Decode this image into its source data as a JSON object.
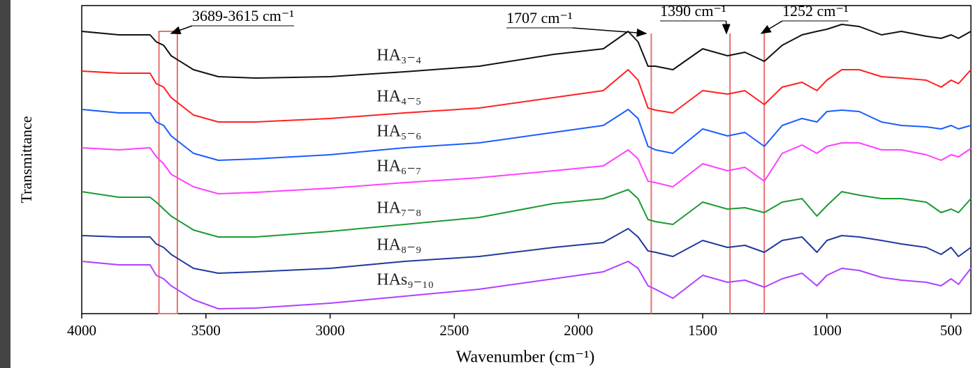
{
  "chart_data": {
    "type": "line",
    "x_label": "Wavenumber (cm⁻¹)",
    "y_label": "Transmittance",
    "xlim": [
      4000,
      420
    ],
    "ylim": [
      0,
      440
    ],
    "xticks": [
      4000,
      3500,
      3000,
      2500,
      2000,
      1500,
      1000,
      500
    ],
    "x": [
      4000,
      3850,
      3725,
      3700,
      3670,
      3640,
      3550,
      3450,
      3300,
      3000,
      2700,
      2400,
      2100,
      1900,
      1800,
      1760,
      1720,
      1690,
      1620,
      1500,
      1400,
      1330,
      1252,
      1180,
      1100,
      1040,
      1000,
      940,
      870,
      780,
      700,
      600,
      540,
      500,
      470,
      420
    ],
    "series": [
      {
        "name": "HA₃₋₄",
        "color": "#111111",
        "values": [
          405,
          400,
          400,
          390,
          385,
          370,
          350,
          340,
          338,
          340,
          347,
          355,
          372,
          380,
          405,
          390,
          355,
          355,
          350,
          380,
          370,
          375,
          362,
          385,
          400,
          405,
          408,
          415,
          412,
          400,
          405,
          398,
          395,
          400,
          395,
          405
        ]
      },
      {
        "name": "HA₄₋₅",
        "color": "#ff2020",
        "values": [
          348,
          345,
          345,
          330,
          325,
          310,
          285,
          275,
          275,
          280,
          288,
          295,
          310,
          320,
          350,
          335,
          295,
          292,
          288,
          320,
          315,
          320,
          300,
          325,
          332,
          320,
          335,
          350,
          350,
          340,
          338,
          335,
          325,
          335,
          330,
          350
        ]
      },
      {
        "name": "HA₅₋₆",
        "color": "#1a5cff",
        "values": [
          293,
          288,
          288,
          275,
          270,
          255,
          230,
          220,
          222,
          228,
          238,
          245,
          260,
          270,
          293,
          280,
          240,
          235,
          230,
          265,
          255,
          260,
          240,
          270,
          280,
          275,
          290,
          292,
          290,
          275,
          270,
          268,
          265,
          270,
          265,
          270
        ]
      },
      {
        "name": "HA₆₋₇",
        "color": "#ff40ff",
        "values": [
          238,
          235,
          238,
          225,
          215,
          200,
          182,
          172,
          174,
          180,
          188,
          195,
          205,
          212,
          235,
          222,
          190,
          188,
          182,
          215,
          205,
          210,
          190,
          230,
          242,
          230,
          240,
          245,
          245,
          235,
          235,
          228,
          220,
          228,
          225,
          237
        ]
      },
      {
        "name": "HA₇₋₈",
        "color": "#1a9a30",
        "values": [
          175,
          167,
          167,
          160,
          150,
          140,
          120,
          110,
          110,
          118,
          128,
          138,
          158,
          165,
          178,
          165,
          135,
          132,
          128,
          160,
          150,
          152,
          145,
          160,
          165,
          140,
          155,
          175,
          170,
          165,
          165,
          160,
          145,
          150,
          145,
          165
        ]
      },
      {
        "name": "HA₈₋₉",
        "color": "#203a9a",
        "values": [
          112,
          110,
          110,
          100,
          95,
          85,
          65,
          58,
          60,
          65,
          75,
          82,
          95,
          102,
          122,
          110,
          90,
          88,
          82,
          105,
          95,
          98,
          88,
          105,
          110,
          88,
          105,
          112,
          110,
          105,
          100,
          95,
          85,
          95,
          82,
          95
        ]
      },
      {
        "name": "HAs₉₋₁₀",
        "color": "#b040ff",
        "values": [
          75,
          70,
          70,
          55,
          50,
          40,
          20,
          7,
          8,
          15,
          25,
          35,
          50,
          60,
          75,
          65,
          40,
          35,
          22,
          55,
          45,
          48,
          38,
          50,
          58,
          40,
          55,
          65,
          62,
          52,
          48,
          45,
          40,
          50,
          42,
          65
        ]
      }
    ],
    "marker_color": "#e87070",
    "annotations": [
      {
        "label": "3689-3615 cm⁻¹",
        "band": [
          3689,
          3615
        ]
      },
      {
        "label": "1707 cm⁻¹",
        "line": 1707
      },
      {
        "label": "1390 cm⁻¹",
        "line": 1390
      },
      {
        "label": "1252 cm⁻¹",
        "line": 1252
      }
    ]
  }
}
